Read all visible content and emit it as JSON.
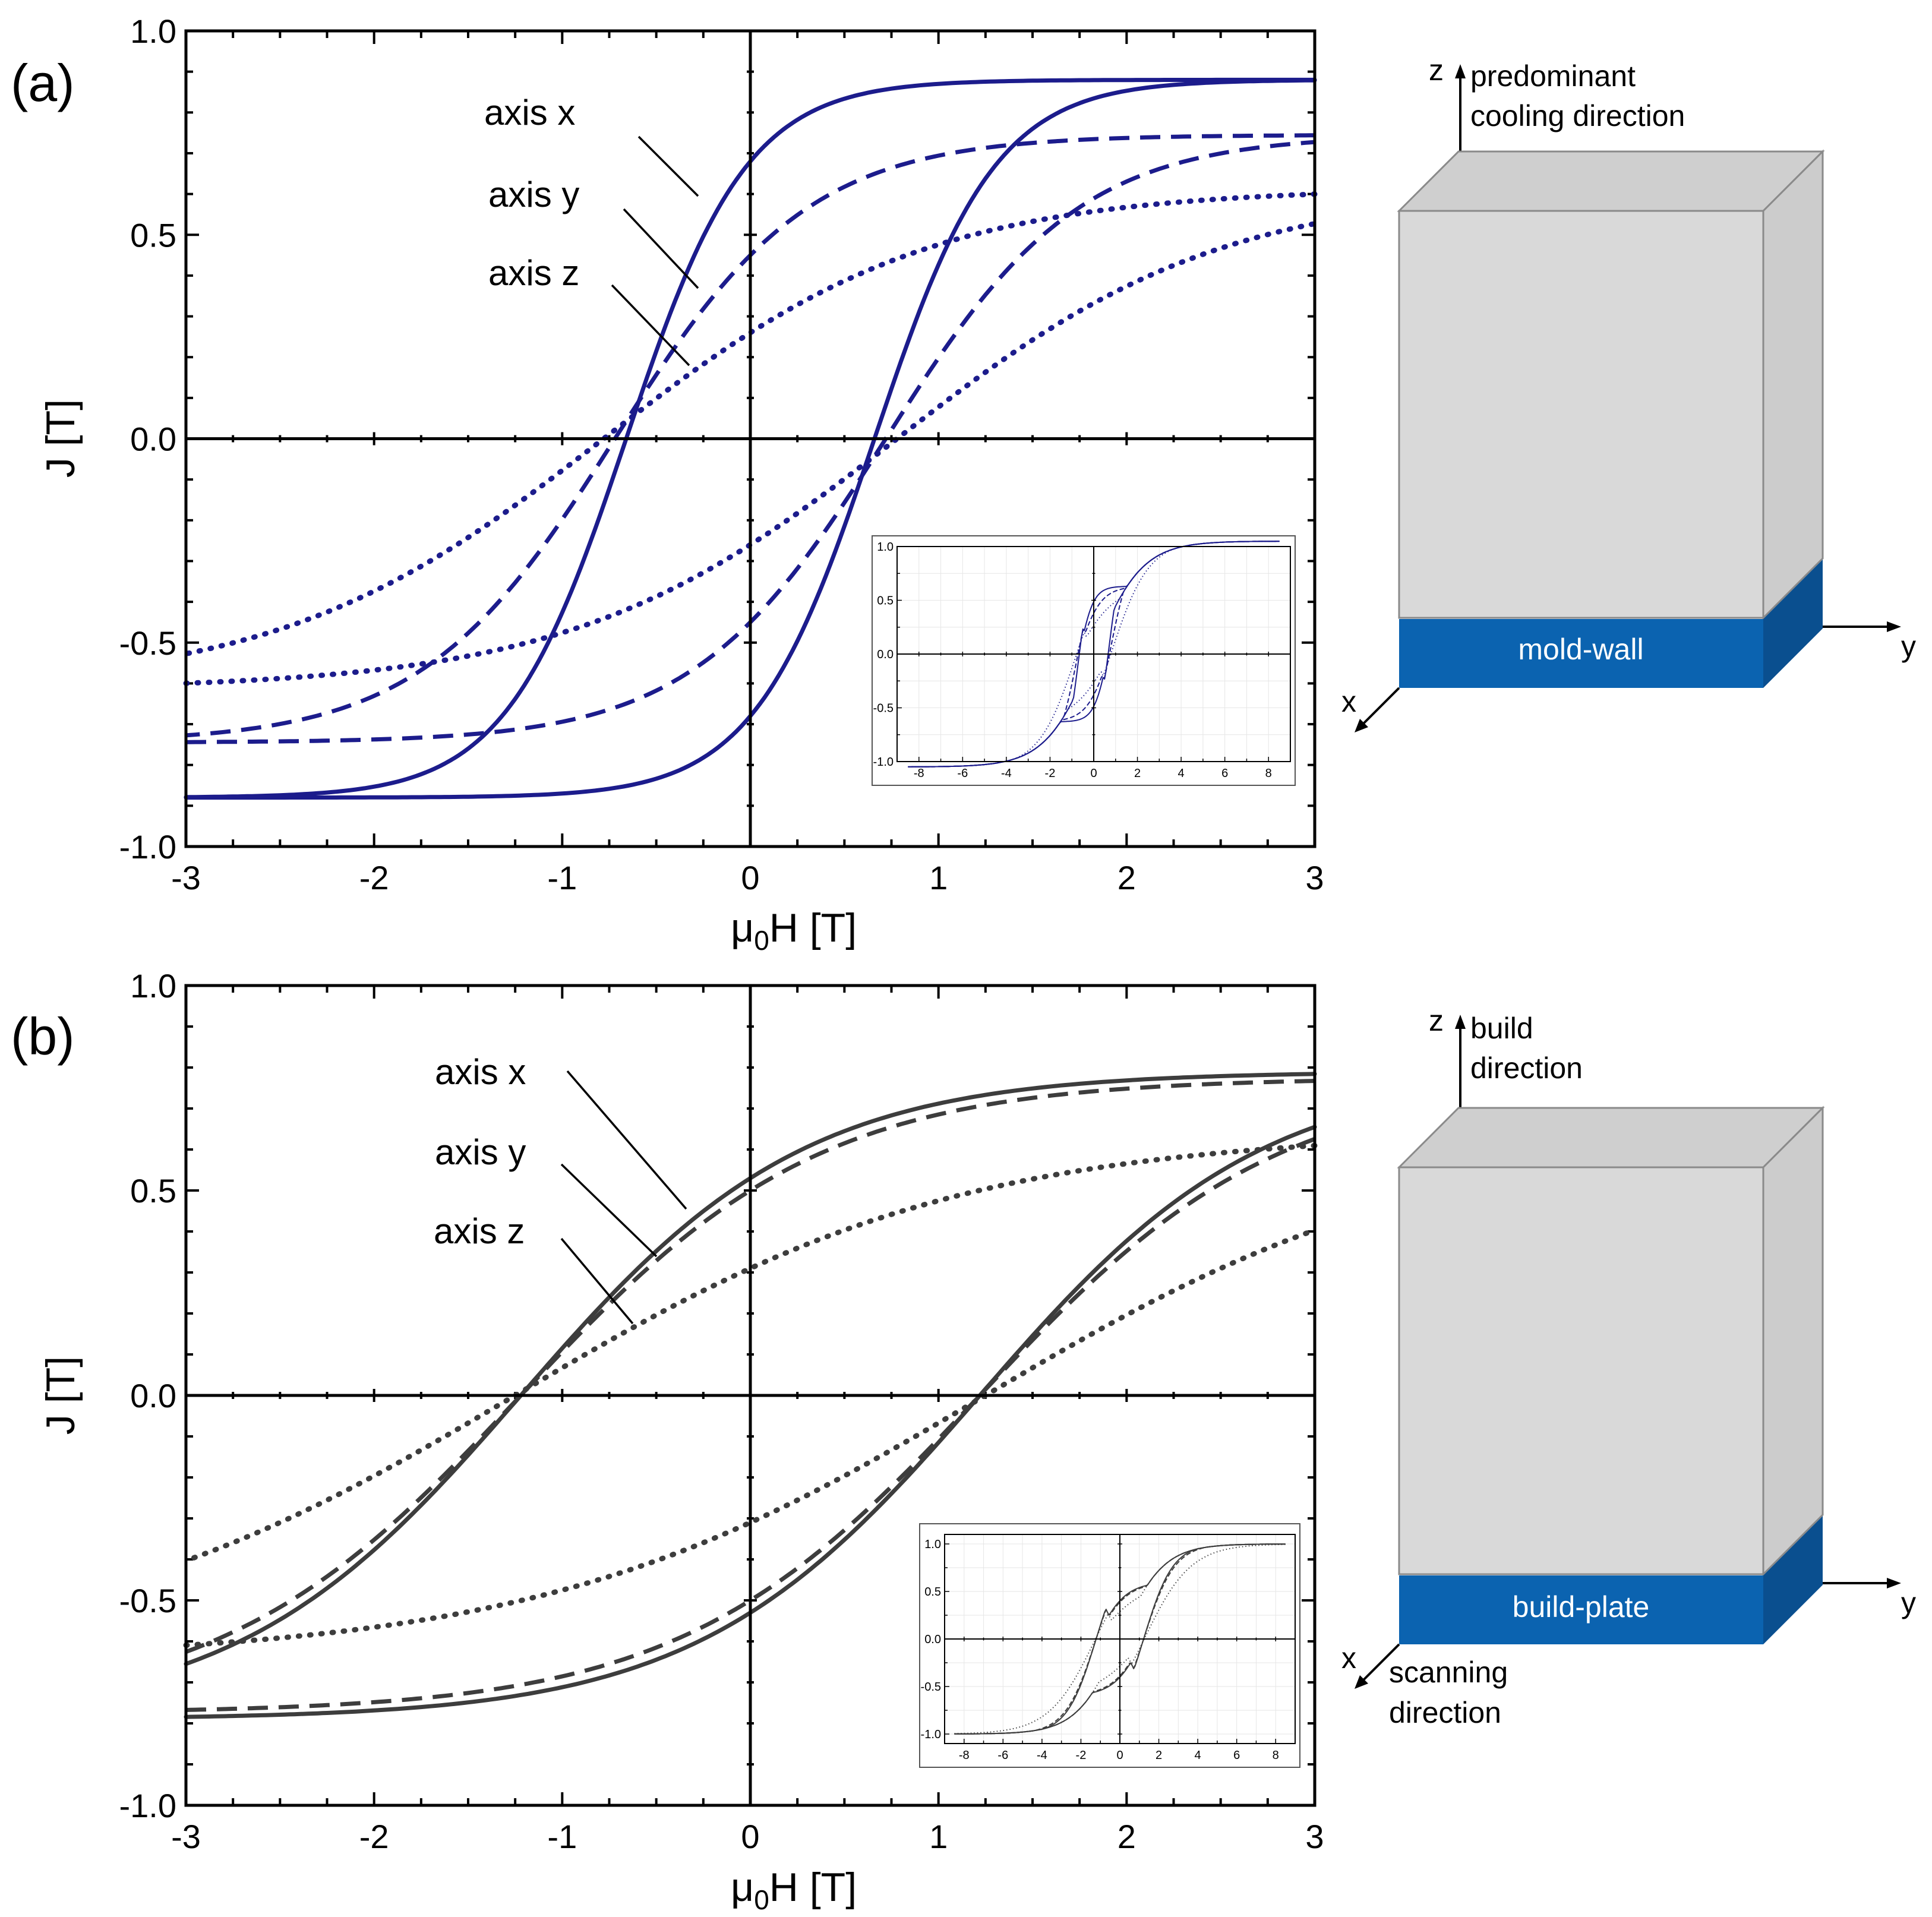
{
  "chart_data": [
    {
      "type": "line",
      "panel_label": "(a)",
      "title": "",
      "xlabel": "μ0H [T]",
      "xlabel_main": "μ",
      "xlabel_sub": "0",
      "xlabel_tail": "H [T]",
      "ylabel": "J [T]",
      "xlim": [
        -3,
        3
      ],
      "ylim": [
        -1.0,
        1.0
      ],
      "xticks": [
        "-3",
        "-2",
        "-1",
        "0",
        "1",
        "2",
        "3"
      ],
      "yticks": [
        "-1.0",
        "-0.5",
        "0.0",
        "0.5",
        "1.0"
      ],
      "color": "#1c1c8c",
      "series": [
        {
          "name": "axis x",
          "style": "solid",
          "Js": 0.88,
          "Jr": 0.68,
          "Hc": 0.66
        },
        {
          "name": "axis y",
          "style": "dashed",
          "Js": 0.745,
          "Jr": 0.45,
          "Hc": 0.72
        },
        {
          "name": "axis z",
          "style": "dotted",
          "Js": 0.615,
          "Jr": 0.26,
          "Hc": 0.78
        }
      ],
      "annotations": [
        "axis x",
        "axis y",
        "axis z"
      ],
      "inset": {
        "xlim": [
          -9,
          9
        ],
        "ylim": [
          -1.0,
          1.0
        ],
        "xticks": [
          "-8",
          "-6",
          "-4",
          "-2",
          "0",
          "2",
          "4",
          "6",
          "8"
        ],
        "yticks": [
          "-1.0",
          "-0.5",
          "0.0",
          "0.5",
          "1.0"
        ],
        "Js": 1.05
      }
    },
    {
      "type": "line",
      "panel_label": "(b)",
      "title": "",
      "xlabel": "μ0H [T]",
      "xlabel_main": "μ",
      "xlabel_sub": "0",
      "xlabel_tail": "H [T]",
      "ylabel": "J [T]",
      "xlim": [
        -3,
        3
      ],
      "ylim": [
        -1.0,
        1.0
      ],
      "xticks": [
        "-3",
        "-2",
        "-1",
        "0",
        "1",
        "2",
        "3"
      ],
      "yticks": [
        "-1.0",
        "-0.5",
        "0.0",
        "0.5",
        "1.0"
      ],
      "color": "#3d3d3d",
      "series": [
        {
          "name": "axis x",
          "style": "solid",
          "Js": 0.79,
          "Jr": 0.53,
          "Hc": 1.22
        },
        {
          "name": "axis y",
          "style": "dashed",
          "Js": 0.775,
          "Jr": 0.5,
          "Hc": 1.22
        },
        {
          "name": "axis z",
          "style": "dotted",
          "Js": 0.645,
          "Jr": 0.31,
          "Hc": 1.25
        }
      ],
      "annotations": [
        "axis x",
        "axis y",
        "axis z"
      ],
      "inset": {
        "xlim": [
          -9,
          9
        ],
        "ylim": [
          -1.1,
          1.1
        ],
        "xticks": [
          "-8",
          "-6",
          "-4",
          "-2",
          "0",
          "2",
          "4",
          "6",
          "8"
        ],
        "yticks": [
          "-1.0",
          "-0.5",
          "0.0",
          "0.5",
          "1.0"
        ],
        "Js": 1.0
      }
    }
  ],
  "schematics": [
    {
      "z_label": "z",
      "z_desc_line1": "predominant",
      "z_desc_line2": "cooling direction",
      "plate_label": "mold-wall",
      "x_label": "x",
      "x_desc_line1": "",
      "x_desc_line2": "",
      "y_label": "y"
    },
    {
      "z_label": "z",
      "z_desc_line1": "build",
      "z_desc_line2": "direction",
      "plate_label": "build-plate",
      "x_label": "x",
      "x_desc_line1": "scanning",
      "x_desc_line2": "direction",
      "y_label": "y"
    }
  ],
  "colors": {
    "plate": "#0b63b0",
    "plate_side": "#0a4f8f",
    "block_front": "#d9d9d9",
    "block_edge": "#8a8a8a"
  }
}
